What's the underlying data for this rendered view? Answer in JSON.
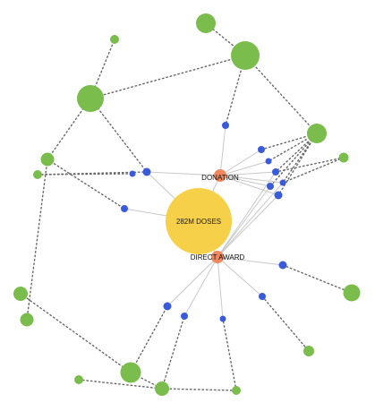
{
  "colors": {
    "total": "#f7d04a",
    "type": "#f0875f",
    "recipient": "#3a5bd9",
    "donor": "#7bbd4c",
    "edge_solid": "#c8c8c8",
    "edge_dotted": "#666666"
  },
  "nodes": {
    "total": {
      "label": "282M DOSES"
    },
    "donation": {
      "label": "DONATION"
    },
    "direct_award": {
      "label": "DIRECT AWARD"
    }
  }
}
